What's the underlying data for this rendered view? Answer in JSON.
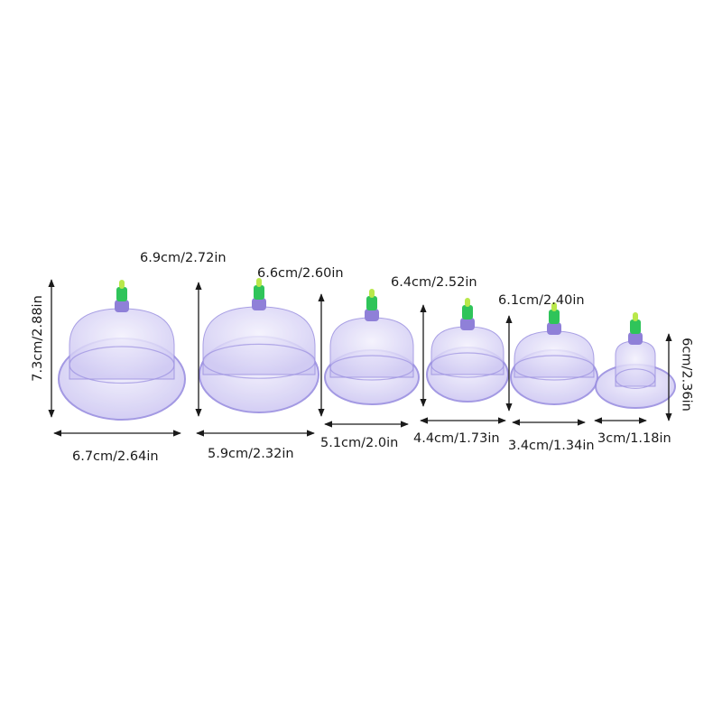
{
  "colors": {
    "cup": "#c9c4f0",
    "cup_edge": "#9a8fe0",
    "valve": "#2fc45a",
    "valve_tip": "#b9e84a",
    "arrow": "#1a1a1a"
  },
  "cups": [
    {
      "diameter_label": "6.9cm/2.72in",
      "base_label": "6.7cm/2.64in",
      "height_label": "7.3cm/2.88in"
    },
    {
      "diameter_label": "6.6cm/2.60in",
      "base_label": "5.9cm/2.32in"
    },
    {
      "diameter_label": "6.4cm/2.52in",
      "base_label": "5.1cm/2.0in"
    },
    {
      "diameter_label": "6.1cm/2.40in",
      "base_label": "4.4cm/1.73in"
    },
    {
      "base_label": "3.4cm/1.34in"
    },
    {
      "base_label": "3cm/1.18in",
      "height_label": "6cm/2.36in"
    }
  ]
}
